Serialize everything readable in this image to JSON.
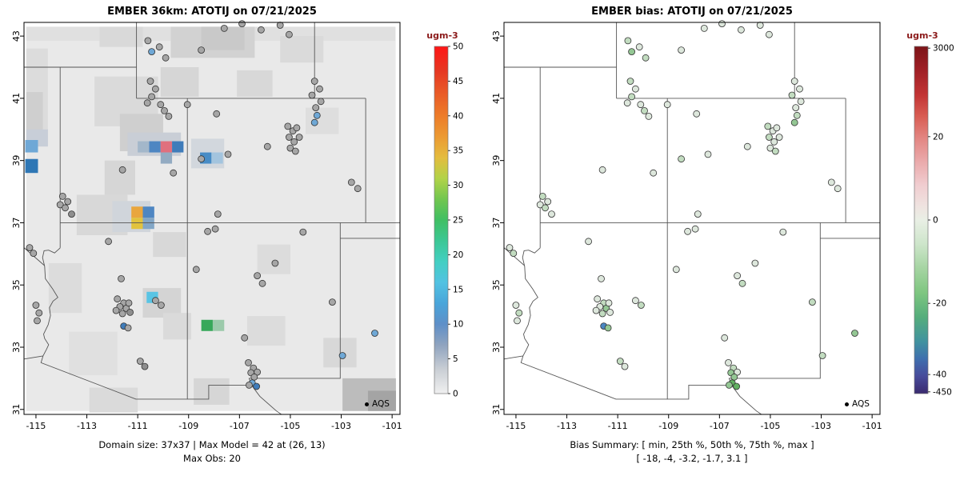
{
  "chart_data": [
    {
      "type": "map",
      "panel": "model",
      "title": "EMBER 36km: ATOTIJ on 07/21/2025",
      "x_ticks": [
        -115,
        -113,
        -111,
        -109,
        -107,
        -105,
        -103,
        -101
      ],
      "y_ticks": [
        31,
        33,
        35,
        37,
        39,
        41,
        43
      ],
      "xlim": [
        -115.47,
        -100.69
      ],
      "ylim": [
        30.84,
        43.44
      ],
      "legend": "AQS",
      "captions": [
        "Domain size: 37x37 | Max Model = 42 at (26, 13)",
        "Max Obs: 20"
      ],
      "colorbar": {
        "label": "ugm-3",
        "label_color": "#8b1a1a",
        "min": 0,
        "max": 50,
        "ticks": [
          {
            "label": "0",
            "f": 1.0
          },
          {
            "label": "5",
            "f": 0.9
          },
          {
            "label": "10",
            "f": 0.8
          },
          {
            "label": "15",
            "f": 0.7
          },
          {
            "label": "20",
            "f": 0.6
          },
          {
            "label": "25",
            "f": 0.5
          },
          {
            "label": "30",
            "f": 0.4
          },
          {
            "label": "35",
            "f": 0.3
          },
          {
            "label": "40",
            "f": 0.2
          },
          {
            "label": "45",
            "f": 0.1
          },
          {
            "label": "50",
            "f": 0.0
          }
        ],
        "stops": [
          {
            "c": "#fe1616",
            "f": 0.0
          },
          {
            "c": "#e63722",
            "f": 0.07
          },
          {
            "c": "#e95827",
            "f": 0.13
          },
          {
            "c": "#ed7c29",
            "f": 0.2
          },
          {
            "c": "#ec9a33",
            "f": 0.26
          },
          {
            "c": "#e4bc3e",
            "f": 0.32
          },
          {
            "c": "#b2d348",
            "f": 0.38
          },
          {
            "c": "#72c64f",
            "f": 0.44
          },
          {
            "c": "#40bf63",
            "f": 0.5
          },
          {
            "c": "#3cc795",
            "f": 0.56
          },
          {
            "c": "#43cfc2",
            "f": 0.62
          },
          {
            "c": "#52c2e2",
            "f": 0.68
          },
          {
            "c": "#49a5da",
            "f": 0.74
          },
          {
            "c": "#5e8fc8",
            "f": 0.8
          },
          {
            "c": "#8fa3bf",
            "f": 0.86
          },
          {
            "c": "#c9ced4",
            "f": 0.93
          },
          {
            "c": "#f0f0f0",
            "f": 1.0
          }
        ]
      },
      "raster": {
        "base": "#e9e9e9",
        "extent": [
          -115.38,
          43.3,
          -100.86,
          30.95
        ],
        "patches": [
          [
            -115.38,
            43.3,
            14.5,
            0.45,
            "#e0e0e0"
          ],
          [
            -109.7,
            43.3,
            3.3,
            1.0,
            "#d2d2d2"
          ],
          [
            -108.5,
            43.3,
            1.7,
            0.75,
            "#c9c9c9"
          ],
          [
            -112.5,
            43.3,
            1.7,
            0.65,
            "#d9d9d9"
          ],
          [
            -105.4,
            43.0,
            1.7,
            0.85,
            "#dadada"
          ],
          [
            -115.38,
            42.6,
            0.85,
            3.1,
            "#dcdcdc"
          ],
          [
            -115.38,
            41.2,
            0.65,
            1.7,
            "#cfcfcf"
          ],
          [
            -115.38,
            40.0,
            0.85,
            0.55,
            "#c8ced8"
          ],
          [
            -112.7,
            41.7,
            2.5,
            1.6,
            "#dadada"
          ],
          [
            -111.7,
            40.5,
            1.7,
            1.2,
            "#cfcfcf"
          ],
          [
            -111.4,
            39.9,
            2.1,
            0.75,
            "#c9ced6"
          ],
          [
            -112.3,
            39.0,
            1.2,
            1.1,
            "#d6d6d6"
          ],
          [
            -113.4,
            37.9,
            2.0,
            1.3,
            "#d8d8d8"
          ],
          [
            -112.0,
            37.7,
            1.5,
            1.0,
            "#d0d5db"
          ],
          [
            -110.4,
            36.7,
            1.3,
            0.8,
            "#d8d8d8"
          ],
          [
            -114.5,
            35.7,
            1.3,
            1.6,
            "#dcdcdc"
          ],
          [
            -113.7,
            33.5,
            1.9,
            1.4,
            "#e0e0e0"
          ],
          [
            -110.8,
            34.9,
            1.5,
            0.95,
            "#d4d4d4"
          ],
          [
            -110.0,
            34.1,
            1.1,
            0.85,
            "#dadada"
          ],
          [
            -106.7,
            34.0,
            1.5,
            0.95,
            "#dcdcdc"
          ],
          [
            -102.95,
            32.0,
            2.1,
            1.05,
            "#bcbcbc"
          ],
          [
            -101.95,
            31.6,
            1.1,
            0.65,
            "#a4a4a4"
          ],
          [
            -107.1,
            41.9,
            1.4,
            0.85,
            "#d8d8d8"
          ],
          [
            -110.1,
            42.0,
            1.5,
            0.95,
            "#d6d6d6"
          ],
          [
            -104.4,
            40.7,
            1.3,
            0.85,
            "#dedede"
          ],
          [
            -108.9,
            39.7,
            1.3,
            0.95,
            "#d2d7dd"
          ],
          [
            -106.3,
            36.3,
            1.3,
            0.95,
            "#dcdcdc"
          ],
          [
            -108.8,
            32.0,
            1.4,
            0.85,
            "#d6d6d6"
          ],
          [
            -112.9,
            31.7,
            1.9,
            0.8,
            "#dadada"
          ],
          [
            -103.7,
            33.3,
            1.3,
            0.95,
            "#d8d8d8"
          ]
        ],
        "cells": [
          [
            -111.0,
            39.62,
            0.45,
            0.36,
            "#a3b7ca"
          ],
          [
            -110.55,
            39.62,
            0.45,
            0.36,
            "#4e86c2"
          ],
          [
            -110.1,
            39.62,
            0.45,
            0.36,
            "#e0707e"
          ],
          [
            -109.65,
            39.62,
            0.45,
            0.36,
            "#3f7cba"
          ],
          [
            -110.1,
            39.26,
            0.45,
            0.36,
            "#93abc2"
          ],
          [
            -108.55,
            39.26,
            0.45,
            0.36,
            "#478cc6"
          ],
          [
            -108.1,
            39.26,
            0.45,
            0.36,
            "#a3c4de"
          ],
          [
            -115.42,
            39.66,
            0.5,
            0.4,
            "#6fa8d6"
          ],
          [
            -115.42,
            39.05,
            0.5,
            0.45,
            "#2f77b5"
          ],
          [
            -111.25,
            37.52,
            0.45,
            0.36,
            "#e9a63e"
          ],
          [
            -111.25,
            37.16,
            0.45,
            0.36,
            "#e2c33d"
          ],
          [
            -110.8,
            37.52,
            0.45,
            0.36,
            "#4e86c2"
          ],
          [
            -110.8,
            37.16,
            0.45,
            0.36,
            "#82a6c6"
          ],
          [
            -110.65,
            34.78,
            0.45,
            0.36,
            "#59c4e4"
          ],
          [
            -108.5,
            33.88,
            0.45,
            0.36,
            "#37a85a"
          ],
          [
            -108.05,
            33.88,
            0.45,
            0.36,
            "#9ccaab"
          ]
        ]
      }
    },
    {
      "type": "map",
      "panel": "bias",
      "title": "EMBER bias: ATOTIJ on 07/21/2025",
      "x_ticks": [
        -115,
        -113,
        -111,
        -109,
        -107,
        -105,
        -103,
        -101
      ],
      "y_ticks": [
        31,
        33,
        35,
        37,
        39,
        41,
        43
      ],
      "xlim": [
        -115.47,
        -100.69
      ],
      "ylim": [
        30.84,
        43.44
      ],
      "legend": "AQS",
      "captions": [
        "Bias Summary: [ min, 25th %, 50th %, 75th %, max ]",
        "[ -18, -4, -3.2, -1.7, 3.1 ]"
      ],
      "colorbar": {
        "label": "ugm-3",
        "label_color": "#8b1a1a",
        "ticks": [
          {
            "label": "3000",
            "f": 0.005
          },
          {
            "label": "20",
            "f": 0.26
          },
          {
            "label": "0",
            "f": 0.5
          },
          {
            "label": "-20",
            "f": 0.74
          },
          {
            "label": "-40",
            "f": 0.945
          },
          {
            "label": "-450",
            "f": 0.995
          }
        ],
        "stops": [
          {
            "c": "#7c1418",
            "f": 0.0
          },
          {
            "c": "#a02026",
            "f": 0.07
          },
          {
            "c": "#c23434",
            "f": 0.14
          },
          {
            "c": "#d85c52",
            "f": 0.2
          },
          {
            "c": "#e2837f",
            "f": 0.26
          },
          {
            "c": "#eaa9aa",
            "f": 0.33
          },
          {
            "c": "#f0cdd0",
            "f": 0.4
          },
          {
            "c": "#efe3e0",
            "f": 0.46
          },
          {
            "c": "#e9efe5",
            "f": 0.5
          },
          {
            "c": "#cde5ca",
            "f": 0.57
          },
          {
            "c": "#a5d4a2",
            "f": 0.64
          },
          {
            "c": "#7ec680",
            "f": 0.71
          },
          {
            "c": "#55ad7c",
            "f": 0.78
          },
          {
            "c": "#41929f",
            "f": 0.85
          },
          {
            "c": "#3f6fae",
            "f": 0.9
          },
          {
            "c": "#474b9b",
            "f": 0.95
          },
          {
            "c": "#3a2a6e",
            "f": 1.0
          }
        ]
      }
    }
  ],
  "stations": {
    "marker": "circle",
    "left_colors": {
      "g": "#a6a6a6",
      "d": "#8e8e8e",
      "b": "#6fa8d6",
      "B": "#3f7cba",
      "w": "#cccccc"
    },
    "right_colors": {
      "p": "#dde7dc",
      "l": "#c2dcc0",
      "m": "#94c794",
      "M": "#62b162",
      "b": "#4a86c2",
      "w": "#e6e6e6"
    },
    "points": [
      [
        -107.6,
        43.25,
        "g",
        "p"
      ],
      [
        -106.9,
        43.4,
        "g",
        "p"
      ],
      [
        -106.15,
        43.2,
        "g",
        "p"
      ],
      [
        -105.4,
        43.35,
        "g",
        "p"
      ],
      [
        -105.05,
        43.05,
        "g",
        "p"
      ],
      [
        -110.45,
        42.5,
        "b",
        "m"
      ],
      [
        -110.6,
        42.85,
        "g",
        "l"
      ],
      [
        -110.15,
        42.65,
        "g",
        "p"
      ],
      [
        -109.9,
        42.3,
        "g",
        "l"
      ],
      [
        -108.5,
        42.55,
        "g",
        "p"
      ],
      [
        -104.05,
        41.55,
        "g",
        "p"
      ],
      [
        -103.85,
        41.3,
        "g",
        "p"
      ],
      [
        -104.15,
        41.1,
        "g",
        "l"
      ],
      [
        -103.8,
        40.9,
        "g",
        "p"
      ],
      [
        -104.0,
        40.7,
        "g",
        "p"
      ],
      [
        -103.95,
        40.45,
        "b",
        "l"
      ],
      [
        -104.05,
        40.22,
        "b",
        "m"
      ],
      [
        -110.5,
        41.55,
        "g",
        "l"
      ],
      [
        -110.3,
        41.3,
        "g",
        "p"
      ],
      [
        -110.45,
        41.05,
        "g",
        "l"
      ],
      [
        -110.62,
        40.85,
        "g",
        "p"
      ],
      [
        -110.1,
        40.8,
        "g",
        "p"
      ],
      [
        -109.95,
        40.6,
        "g",
        "l"
      ],
      [
        -109.78,
        40.42,
        "g",
        "p"
      ],
      [
        -109.05,
        40.8,
        "g",
        "p"
      ],
      [
        -107.9,
        40.5,
        "g",
        "p"
      ],
      [
        -111.6,
        38.7,
        "g",
        "p"
      ],
      [
        -105.9,
        39.45,
        "g",
        "p"
      ],
      [
        -108.5,
        39.05,
        "g",
        "l"
      ],
      [
        -107.45,
        39.2,
        "g",
        "p"
      ],
      [
        -109.6,
        38.6,
        "g",
        "p"
      ],
      [
        -105.1,
        40.1,
        "g",
        "l"
      ],
      [
        -104.9,
        39.95,
        "g",
        "p"
      ],
      [
        -104.75,
        40.05,
        "g",
        "p"
      ],
      [
        -105.05,
        39.75,
        "g",
        "l"
      ],
      [
        -104.85,
        39.6,
        "g",
        "p"
      ],
      [
        -104.65,
        39.75,
        "g",
        "p"
      ],
      [
        -105.0,
        39.4,
        "g",
        "p"
      ],
      [
        -104.8,
        39.3,
        "g",
        "l"
      ],
      [
        -102.6,
        38.3,
        "g",
        "p"
      ],
      [
        -102.35,
        38.1,
        "g",
        "p"
      ],
      [
        -113.95,
        37.85,
        "g",
        "l"
      ],
      [
        -113.75,
        37.68,
        "g",
        "p"
      ],
      [
        -114.05,
        37.58,
        "g",
        "p"
      ],
      [
        -113.85,
        37.48,
        "g",
        "l"
      ],
      [
        -113.6,
        37.28,
        "d",
        "p"
      ],
      [
        -115.25,
        36.2,
        "g",
        "p"
      ],
      [
        -115.1,
        36.02,
        "g",
        "l"
      ],
      [
        -112.15,
        36.4,
        "g",
        "p"
      ],
      [
        -111.65,
        35.2,
        "g",
        "p"
      ],
      [
        -115.0,
        34.35,
        "g",
        "p"
      ],
      [
        -114.88,
        34.1,
        "g",
        "l"
      ],
      [
        -114.95,
        33.85,
        "g",
        "p"
      ],
      [
        -111.8,
        34.55,
        "g",
        "p"
      ],
      [
        -111.55,
        34.42,
        "g",
        "l"
      ],
      [
        -111.7,
        34.3,
        "g",
        "p"
      ],
      [
        -111.45,
        34.25,
        "g",
        "m"
      ],
      [
        -111.85,
        34.18,
        "g",
        "p"
      ],
      [
        -111.6,
        34.08,
        "g",
        "l"
      ],
      [
        -111.35,
        34.42,
        "g",
        "p"
      ],
      [
        -111.3,
        34.12,
        "d",
        "p"
      ],
      [
        -110.3,
        34.5,
        "g",
        "p"
      ],
      [
        -110.08,
        34.35,
        "g",
        "l"
      ],
      [
        -111.55,
        33.68,
        "B",
        "b"
      ],
      [
        -111.38,
        33.62,
        "g",
        "m"
      ],
      [
        -110.9,
        32.55,
        "g",
        "l"
      ],
      [
        -110.72,
        32.38,
        "d",
        "p"
      ],
      [
        -108.7,
        35.5,
        "g",
        "p"
      ],
      [
        -106.3,
        35.3,
        "g",
        "p"
      ],
      [
        -105.6,
        35.7,
        "g",
        "p"
      ],
      [
        -106.1,
        35.05,
        "g",
        "l"
      ],
      [
        -108.25,
        36.72,
        "g",
        "p"
      ],
      [
        -107.95,
        36.8,
        "g",
        "p"
      ],
      [
        -107.85,
        37.28,
        "g",
        "p"
      ],
      [
        -104.5,
        36.7,
        "g",
        "p"
      ],
      [
        -103.35,
        34.45,
        "g",
        "l"
      ],
      [
        -106.8,
        33.3,
        "g",
        "p"
      ],
      [
        -106.65,
        32.5,
        "g",
        "p"
      ],
      [
        -106.45,
        32.33,
        "g",
        "l"
      ],
      [
        -106.55,
        32.18,
        "g",
        "m"
      ],
      [
        -106.3,
        32.2,
        "g",
        "p"
      ],
      [
        -106.42,
        32.04,
        "g",
        "m"
      ],
      [
        -106.5,
        31.85,
        "b",
        "M"
      ],
      [
        -106.33,
        31.74,
        "B",
        "M"
      ],
      [
        -106.62,
        31.78,
        "g",
        "m"
      ],
      [
        -102.95,
        32.73,
        "b",
        "l"
      ],
      [
        -101.68,
        33.45,
        "b",
        "m"
      ]
    ]
  }
}
